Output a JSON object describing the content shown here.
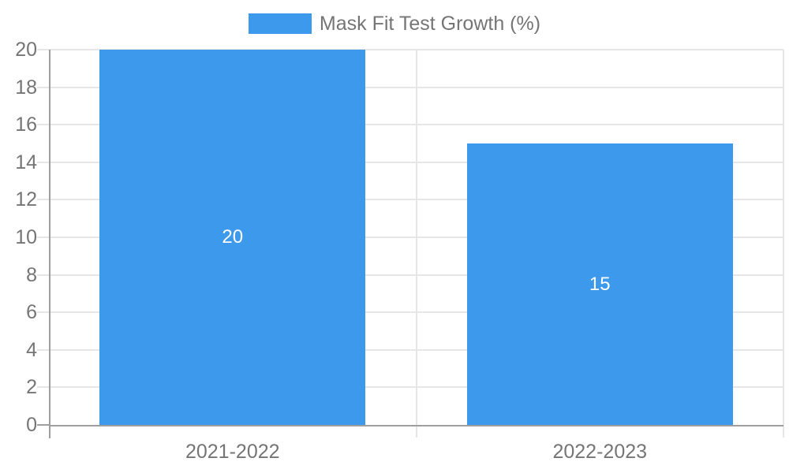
{
  "chart_data": {
    "type": "bar",
    "title": "Mask Fit Test Growth (%)",
    "categories": [
      "2021-2022",
      "2022-2023"
    ],
    "series": [
      {
        "name": "Mask Fit Test Growth (%)",
        "values": [
          20,
          15
        ]
      }
    ],
    "bar_value_labels": [
      "20",
      "15"
    ],
    "xlabel": "",
    "ylabel": "",
    "ylim": [
      0,
      20
    ],
    "yticks": [
      0,
      2,
      4,
      6,
      8,
      10,
      12,
      14,
      16,
      18,
      20
    ],
    "grid": true,
    "legend_position": "top-center",
    "colors": {
      "bar": "#3c99ec",
      "axis_line": "#9e9e9e",
      "gridline": "#e6e6e6",
      "axis_text": "#757575",
      "legend_text": "#757575",
      "bar_label_text": "#ffffff",
      "background": "#ffffff"
    }
  }
}
